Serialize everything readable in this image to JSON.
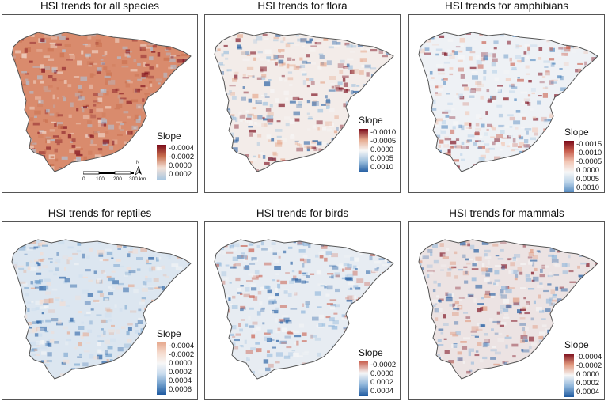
{
  "panels": [
    {
      "title": "HSI trends for all species",
      "legend_title": "Slope",
      "ticks": [
        "-0.0004",
        "-0.0002",
        "0.0000",
        "0.0002"
      ],
      "colors": [
        "#7a0a1a",
        "#c9704f",
        "#f4e2d8",
        "#aac7e0"
      ],
      "base_fill": "#d98b6d"
    },
    {
      "title": "HSI trends for flora",
      "legend_title": "Slope",
      "ticks": [
        "-0.0010",
        "-0.0005",
        "0.0000",
        "0.0005",
        "0.0010"
      ],
      "colors": [
        "#7a0a1a",
        "#e6a98e",
        "#f7f7f7",
        "#9cbfdd",
        "#1f5aa0"
      ],
      "base_fill": "#f3ece9"
    },
    {
      "title": "HSI trends for amphibians",
      "legend_title": "Slope",
      "ticks": [
        "-0.0015",
        "-0.0010",
        "-0.0005",
        "0.0000",
        "0.0005",
        "0.0010"
      ],
      "colors": [
        "#7a0a1a",
        "#c9604f",
        "#f2c6b4",
        "#f7f7f7",
        "#b9d2e8",
        "#4f86bd"
      ],
      "base_fill": "#eef1f5"
    },
    {
      "title": "HSI trends for reptiles",
      "legend_title": "Slope",
      "ticks": [
        "-0.0004",
        "-0.0002",
        "0.0000",
        "0.0002",
        "0.0004",
        "0.0006"
      ],
      "colors": [
        "#e6a98e",
        "#f6dccf",
        "#f7f7f7",
        "#c9dcee",
        "#6f9ecb",
        "#1f5aa0"
      ],
      "base_fill": "#dce6f0"
    },
    {
      "title": "HSI trends for birds",
      "legend_title": "Slope",
      "ticks": [
        "-0.0002",
        "0.0000",
        "0.0002",
        "0.0004"
      ],
      "colors": [
        "#c9604f",
        "#f7f7f7",
        "#8fb6db",
        "#1f5aa0"
      ],
      "base_fill": "#e7ecf2"
    },
    {
      "title": "HSI trends for mammals",
      "legend_title": "Slope",
      "ticks": [
        "-0.0004",
        "-0.0002",
        "0.0000",
        "0.0002",
        "0.0004"
      ],
      "colors": [
        "#7a0a1a",
        "#e0977c",
        "#f7f7f7",
        "#8fb6db",
        "#1f5aa0"
      ],
      "base_fill": "#ece3e3"
    }
  ],
  "scalebar": {
    "labels": [
      "0",
      "100",
      "200",
      "300 km"
    ],
    "north": "N"
  }
}
